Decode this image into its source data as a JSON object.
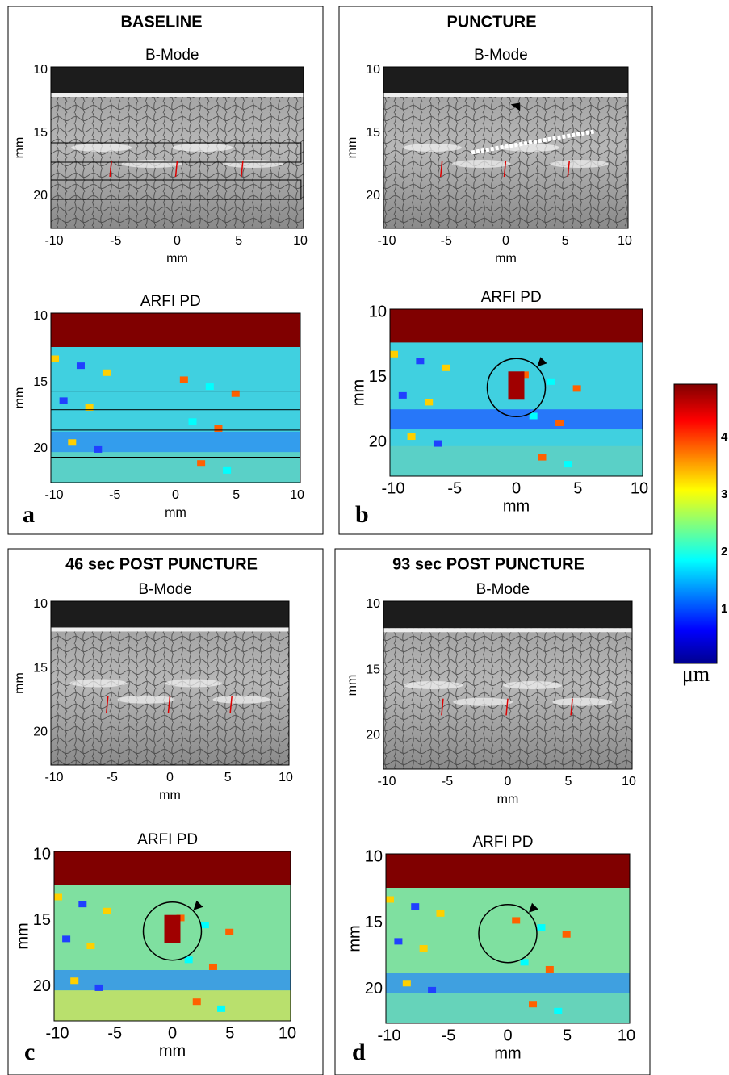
{
  "panels": [
    {
      "title": "BASELINE",
      "letter": "a",
      "bmode": {
        "title": "B-Mode",
        "ylabel": "mm",
        "xlabel": "mm",
        "yticks": [
          "10",
          "15",
          "20"
        ],
        "xticks": [
          "-10",
          "-5",
          "0",
          "5",
          "10"
        ]
      },
      "arfi": {
        "title": "ARFI PD",
        "ylabel": "mm",
        "xlabel": "mm",
        "yticks": [
          "10",
          "15",
          "20"
        ],
        "xticks": [
          "-10",
          "-5",
          "0",
          "5",
          "10"
        ]
      }
    },
    {
      "title": "PUNCTURE",
      "letter": "b",
      "bmode": {
        "title": "B-Mode",
        "ylabel": "mm",
        "xlabel": "mm",
        "yticks": [
          "10",
          "15",
          "20"
        ],
        "xticks": [
          "-10",
          "-5",
          "0",
          "5",
          "10"
        ]
      },
      "arfi": {
        "title": "ARFI PD",
        "ylabel": "mm",
        "xlabel": "mm",
        "yticks": [
          "10",
          "15",
          "20"
        ],
        "xticks": [
          "-10",
          "-5",
          "0",
          "5",
          "10"
        ]
      }
    },
    {
      "title": "46 sec POST PUNCTURE",
      "letter": "c",
      "bmode": {
        "title": "B-Mode",
        "ylabel": "mm",
        "xlabel": "mm",
        "yticks": [
          "10",
          "15",
          "20"
        ],
        "xticks": [
          "-10",
          "-5",
          "0",
          "5",
          "10"
        ]
      },
      "arfi": {
        "title": "ARFI PD",
        "ylabel": "mm",
        "xlabel": "mm",
        "yticks": [
          "10",
          "15",
          "20"
        ],
        "xticks": [
          "-10",
          "-5",
          "0",
          "5",
          "10"
        ]
      }
    },
    {
      "title": "93 sec POST PUNCTURE",
      "letter": "d",
      "bmode": {
        "title": "B-Mode",
        "ylabel": "mm",
        "xlabel": "mm",
        "yticks": [
          "10",
          "15",
          "20"
        ],
        "xticks": [
          "-10",
          "-5",
          "0",
          "5",
          "10"
        ]
      },
      "arfi": {
        "title": "ARFI PD",
        "ylabel": "mm",
        "xlabel": "mm",
        "yticks": [
          "10",
          "15",
          "20"
        ],
        "xticks": [
          "-10",
          "-5",
          "0",
          "5",
          "10"
        ]
      }
    }
  ],
  "colorbar": {
    "ticks": [
      "1",
      "2",
      "3",
      "4"
    ],
    "unit": "μm"
  }
}
